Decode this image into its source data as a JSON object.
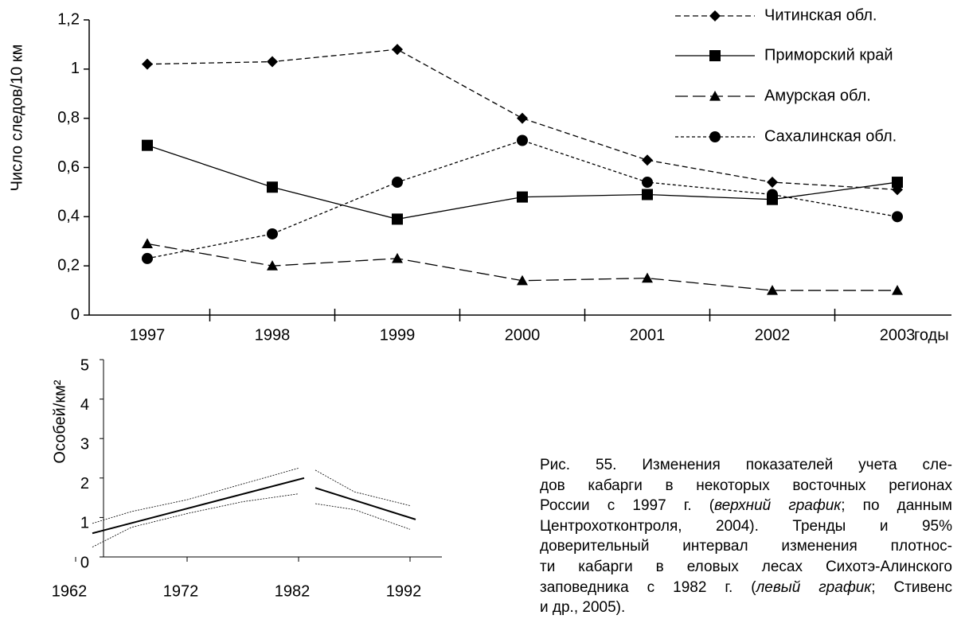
{
  "chart_data": [
    {
      "type": "line",
      "y_label": "Число следов/10 км",
      "x_label": "годы",
      "categories": [
        "1997",
        "1998",
        "1999",
        "2000",
        "2001",
        "2002",
        "2003"
      ],
      "ylim": [
        0,
        1.2
      ],
      "yticks": [
        0,
        {
          "value": 0.2,
          "label": "0,2"
        },
        {
          "value": 0.4,
          "label": "0,4"
        },
        {
          "value": 0.6,
          "label": "0,6"
        },
        {
          "value": 0.8,
          "label": "0,8"
        },
        1,
        {
          "value": 1.2,
          "label": "1,2"
        }
      ],
      "legend": "top-right",
      "series": [
        {
          "name": "Читинская обл.",
          "color": "#000000",
          "line_style": "dashed",
          "marker": "diamond",
          "values": [
            1.02,
            1.03,
            1.08,
            0.8,
            0.63,
            0.54,
            0.51
          ]
        },
        {
          "name": "Приморский край",
          "color": "#000000",
          "line_style": "solid",
          "marker": "square",
          "values": [
            0.69,
            0.52,
            0.39,
            0.48,
            0.49,
            0.47,
            0.54
          ]
        },
        {
          "name": "Амурская обл.",
          "color": "#000000",
          "line_style": "long-dashed",
          "marker": "triangle",
          "values": [
            0.29,
            0.2,
            0.23,
            0.14,
            0.15,
            0.1,
            0.1
          ]
        },
        {
          "name": "Сахалинская обл.",
          "color": "#000000",
          "line_style": "dotted",
          "marker": "circle",
          "values": [
            0.23,
            0.33,
            0.54,
            0.71,
            0.54,
            0.49,
            0.4
          ]
        }
      ]
    },
    {
      "type": "line",
      "y_label": "Особей/км²",
      "xticks": [
        1962,
        1972,
        1982,
        1992
      ],
      "ylim": [
        0,
        5
      ],
      "yticks": [
        0,
        1,
        2,
        3,
        4,
        5
      ],
      "series": [
        {
          "color": "#000000",
          "line_style": "solid",
          "x": [
            1963.5,
            1982.5
          ],
          "values": [
            0.6,
            2.0
          ]
        },
        {
          "color": "#000000",
          "line_style": "dotted",
          "x": [
            1963.5,
            1967,
            1972,
            1977,
            1982
          ],
          "values": [
            0.85,
            1.15,
            1.45,
            1.85,
            2.25
          ]
        },
        {
          "color": "#000000",
          "line_style": "dotted",
          "x": [
            1963.5,
            1967,
            1972,
            1977,
            1982
          ],
          "values": [
            0.25,
            0.75,
            1.1,
            1.4,
            1.6
          ]
        },
        {
          "color": "#000000",
          "line_style": "solid",
          "x": [
            1983.5,
            1992.5
          ],
          "values": [
            1.75,
            0.95
          ]
        },
        {
          "color": "#000000",
          "line_style": "dotted",
          "x": [
            1983.5,
            1987,
            1992
          ],
          "values": [
            2.2,
            1.65,
            1.3
          ]
        },
        {
          "color": "#000000",
          "line_style": "dotted",
          "x": [
            1983.5,
            1987,
            1992
          ],
          "values": [
            1.35,
            1.2,
            0.7
          ]
        }
      ]
    }
  ],
  "caption": [
    [
      {
        "text": "Рис. 55. Изменения показателей учета сле-"
      }
    ],
    [
      {
        "text": "дов кабарги в некоторых восточных регионах"
      }
    ],
    [
      {
        "text": "России с 1997 г. ("
      },
      {
        "text": "верхний график",
        "italic": true
      },
      {
        "text": "; по данным"
      }
    ],
    [
      {
        "text": "Центрохотконтроля, 2004). Тренды и 95%"
      }
    ],
    [
      {
        "text": "доверительный интервал изменения плотнос-"
      }
    ],
    [
      {
        "text": "ти кабарги в еловых лесах Сихотэ-Алинского"
      }
    ],
    [
      {
        "text": "заповедника с 1982 г. ("
      },
      {
        "text": "левый график",
        "italic": true
      },
      {
        "text": "; Стивенс"
      }
    ],
    [
      {
        "text": "и др., 2005)."
      }
    ]
  ]
}
